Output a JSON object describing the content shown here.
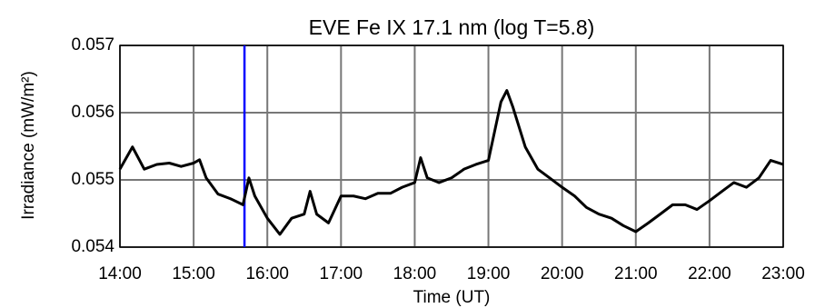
{
  "chart_data": {
    "type": "line",
    "title": "EVE Fe IX 17.1 nm (log T=5.8)",
    "x_label": "Time (UT)",
    "y_label": "Irradiance (mW/m²)",
    "x": [
      14.0,
      14.17,
      14.33,
      14.5,
      14.67,
      14.83,
      15.0,
      15.08,
      15.17,
      15.33,
      15.5,
      15.67,
      15.75,
      15.83,
      16.0,
      16.17,
      16.33,
      16.5,
      16.58,
      16.67,
      16.83,
      17.0,
      17.17,
      17.33,
      17.5,
      17.67,
      17.83,
      18.0,
      18.08,
      18.17,
      18.33,
      18.5,
      18.67,
      18.83,
      19.0,
      19.17,
      19.25,
      19.33,
      19.5,
      19.67,
      19.83,
      20.0,
      20.17,
      20.33,
      20.5,
      20.67,
      20.83,
      21.0,
      21.17,
      21.33,
      21.5,
      21.67,
      21.83,
      22.0,
      22.17,
      22.33,
      22.5,
      22.67,
      22.83,
      23.0
    ],
    "series": [
      {
        "color": "#000000",
        "values": [
          0.05516,
          0.05549,
          0.05516,
          0.05523,
          0.05525,
          0.0552,
          0.05525,
          0.0553,
          0.05503,
          0.05479,
          0.05472,
          0.05463,
          0.05503,
          0.05476,
          0.05443,
          0.05419,
          0.05443,
          0.05449,
          0.05483,
          0.05449,
          0.05436,
          0.05476,
          0.05476,
          0.05472,
          0.0548,
          0.0548,
          0.05489,
          0.05496,
          0.05533,
          0.05503,
          0.05496,
          0.05503,
          0.05516,
          0.05523,
          0.05529,
          0.05616,
          0.05633,
          0.05609,
          0.05549,
          0.05516,
          0.05503,
          0.05489,
          0.05476,
          0.05459,
          0.05449,
          0.05443,
          0.05432,
          0.05423,
          0.05436,
          0.05449,
          0.05463,
          0.05463,
          0.05456,
          0.05469,
          0.05483,
          0.05496,
          0.05489,
          0.05503,
          0.05529,
          0.05523
        ]
      }
    ],
    "marker_x": 15.69,
    "marker_color": "#0000ff",
    "xlim": [
      14,
      23
    ],
    "xticks": [
      {
        "value": 14,
        "label": "14:00"
      },
      {
        "value": 15,
        "label": "15:00"
      },
      {
        "value": 16,
        "label": "16:00"
      },
      {
        "value": 17,
        "label": "17:00"
      },
      {
        "value": 18,
        "label": "18:00"
      },
      {
        "value": 19,
        "label": "19:00"
      },
      {
        "value": 20,
        "label": "20:00"
      },
      {
        "value": 21,
        "label": "21:00"
      },
      {
        "value": 22,
        "label": "22:00"
      },
      {
        "value": 23,
        "label": "23:00"
      }
    ],
    "ylim": [
      0.054,
      0.057
    ],
    "yticks": [
      0.054,
      0.055,
      0.056,
      0.057
    ],
    "grid": true
  }
}
